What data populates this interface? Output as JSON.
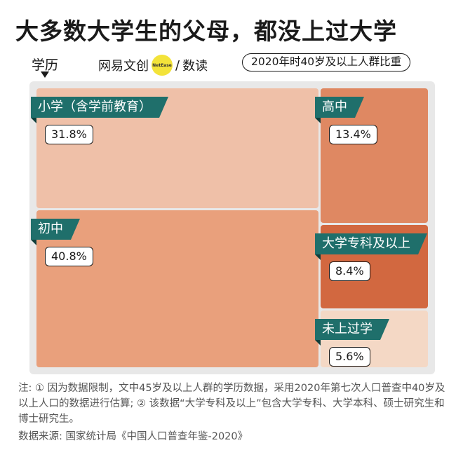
{
  "title": "大多数大学生的父母，都没上过大学",
  "axis_label": "学历",
  "brand": {
    "name": "网易文创",
    "badge": "NetEase",
    "sep": "/",
    "sub": "数读"
  },
  "subtitle": "2020年时40岁及以上人群比重",
  "chart_data": {
    "type": "treemap",
    "title": "大多数大学生的父母，都没上过大学",
    "subtitle": "2020年时40岁及以上人群比重",
    "unit": "%",
    "items": [
      {
        "name": "小学（含学前教育）",
        "value": 31.8,
        "label": "31.8%",
        "color": "#efc0a8"
      },
      {
        "name": "初中",
        "value": 40.8,
        "label": "40.8%",
        "color": "#e9a07c"
      },
      {
        "name": "高中",
        "value": 13.4,
        "label": "13.4%",
        "color": "#df8862"
      },
      {
        "name": "大学专科及以上",
        "value": 8.4,
        "label": "8.4%",
        "color": "#d26840"
      },
      {
        "name": "未上过学",
        "value": 5.6,
        "label": "5.6%",
        "color": "#f4d8c5"
      }
    ]
  },
  "colors": {
    "tag_bg": "#1f6f6b",
    "frame_bg": "#e8e8e8",
    "brand_dot": "#f3e33a"
  },
  "note": "注: ① 因为数据限制，文中45岁及以上人群的学历数据，采用2020年第七次人口普查中40岁及以上人口的数据进行估算; ② 该数据“大学专科及以上”包含大学专科、大学本科、硕士研究生和博士研究生。",
  "source": "数据来源: 国家统计局《中国人口普查年鉴-2020》"
}
